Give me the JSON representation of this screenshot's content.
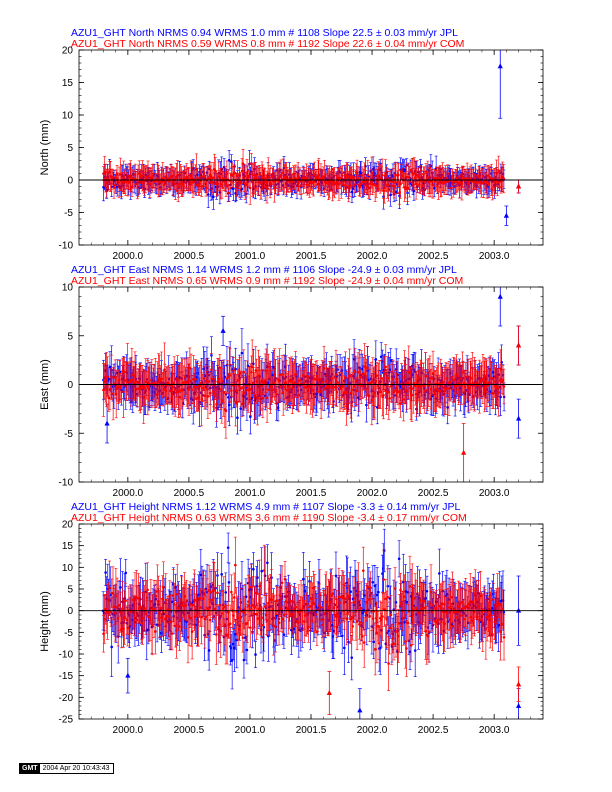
{
  "colors": {
    "jpl": "#0000ff",
    "com": "#ff0000",
    "axis": "#000000"
  },
  "chart_data": [
    {
      "type": "scatter",
      "ylabel": "North (mm)",
      "ylim": [
        -10,
        20
      ],
      "yticks": [
        -10,
        -5,
        0,
        5,
        10,
        15,
        20
      ],
      "xlim": [
        1999.6,
        2003.4
      ],
      "xticks": [
        2000.0,
        2000.5,
        2001.0,
        2001.5,
        2002.0,
        2002.5,
        2003.0
      ],
      "xtick_labels": [
        "2000.0",
        "2000.5",
        "2001.0",
        "2001.5",
        "2002.0",
        "2002.5",
        "2003.0"
      ],
      "header_lines": [
        {
          "text": "AZU1_GHT North NRMS 0.94 WRMS  1.0 mm # 1108 Slope   22.5 ±  0.03 mm/yr JPL",
          "color": "#0000ff"
        },
        {
          "text": "AZU1_GHT North NRMS 0.59 WRMS  0.8 mm # 1192 Slope   22.6 ±  0.04 mm/yr COM",
          "color": "#ff0000"
        }
      ],
      "series": [
        {
          "name": "JPL",
          "color": "#0000ff",
          "t_start": 1999.8,
          "t_end": 2003.08,
          "sigma": 1.0,
          "errbar": 1.5,
          "outliers": [
            {
              "x": 2003.05,
              "y": 17.5,
              "err": 8
            },
            {
              "x": 2003.2,
              "y": -1,
              "err": 1
            },
            {
              "x": 2003.1,
              "y": -5.5,
              "err": 1.5
            }
          ]
        },
        {
          "name": "COM",
          "color": "#ff0000",
          "t_start": 1999.8,
          "t_end": 2003.08,
          "sigma": 0.8,
          "errbar": 1.8,
          "outliers": [
            {
              "x": 2003.2,
              "y": -1,
              "err": 1
            }
          ]
        }
      ]
    },
    {
      "type": "scatter",
      "ylabel": "East (mm)",
      "ylim": [
        -10,
        10
      ],
      "yticks": [
        -10,
        -5,
        0,
        5,
        10
      ],
      "xlim": [
        1999.6,
        2003.4
      ],
      "xticks": [
        2000.0,
        2000.5,
        2001.0,
        2001.5,
        2002.0,
        2002.5,
        2003.0
      ],
      "xtick_labels": [
        "2000.0",
        "2000.5",
        "2001.0",
        "2001.5",
        "2002.0",
        "2002.5",
        "2003.0"
      ],
      "header_lines": [
        {
          "text": "AZU1_GHT East NRMS 1.14 WRMS  1.2 mm # 1106 Slope  -24.9 ±  0.03 mm/yr JPL",
          "color": "#0000ff"
        },
        {
          "text": "AZU1_GHT East NRMS 0.65 WRMS  0.9 mm # 1192 Slope  -24.9 ±  0.04 mm/yr COM",
          "color": "#ff0000"
        }
      ],
      "series": [
        {
          "name": "JPL",
          "color": "#0000ff",
          "t_start": 1999.8,
          "t_end": 2003.08,
          "sigma": 1.2,
          "errbar": 1.8,
          "outliers": [
            {
              "x": 2003.05,
              "y": 9,
              "err": 3
            },
            {
              "x": 2003.2,
              "y": 4,
              "err": 2
            },
            {
              "x": 2003.2,
              "y": -3.5,
              "err": 2
            },
            {
              "x": 1999.83,
              "y": -4,
              "err": 2
            },
            {
              "x": 2000.78,
              "y": 5.5,
              "err": 1.5
            }
          ]
        },
        {
          "name": "COM",
          "color": "#ff0000",
          "t_start": 1999.8,
          "t_end": 2003.08,
          "sigma": 0.9,
          "errbar": 2.0,
          "outliers": [
            {
              "x": 2002.75,
              "y": -7,
              "err": 3
            },
            {
              "x": 2003.2,
              "y": 4,
              "err": 2
            }
          ]
        }
      ]
    },
    {
      "type": "scatter",
      "ylabel": "Height (mm)",
      "ylim": [
        -25,
        20
      ],
      "yticks": [
        -25,
        -20,
        -15,
        -10,
        -5,
        0,
        5,
        10,
        15,
        20
      ],
      "xlim": [
        1999.6,
        2003.4
      ],
      "xticks": [
        2000.0,
        2000.5,
        2001.0,
        2001.5,
        2002.0,
        2002.5,
        2003.0
      ],
      "xtick_labels": [
        "2000.0",
        "2000.5",
        "2001.0",
        "2001.5",
        "2002.0",
        "2002.5",
        "2003.0"
      ],
      "header_lines": [
        {
          "text": "AZU1_GHT Height NRMS 1.12 WRMS  4.9 mm # 1107 Slope   -3.3 ±  0.14 mm/yr JPL",
          "color": "#0000ff"
        },
        {
          "text": "AZU1_GHT Height NRMS 0.63 WRMS  3.6 mm # 1190 Slope   -3.4 ±  0.17 mm/yr COM",
          "color": "#ff0000"
        }
      ],
      "series": [
        {
          "name": "JPL",
          "color": "#0000ff",
          "t_start": 1999.8,
          "t_end": 2003.08,
          "sigma": 4.9,
          "errbar": 5,
          "outliers": [
            {
              "x": 2001.9,
              "y": -23,
              "err": 5
            },
            {
              "x": 2003.2,
              "y": 0,
              "err": 8
            },
            {
              "x": 2003.2,
              "y": -22,
              "err": 4
            },
            {
              "x": 2000.0,
              "y": -15,
              "err": 4
            }
          ]
        },
        {
          "name": "COM",
          "color": "#ff0000",
          "t_start": 1999.8,
          "t_end": 2003.08,
          "sigma": 3.6,
          "errbar": 5,
          "outliers": [
            {
              "x": 2003.2,
              "y": -17,
              "err": 4
            },
            {
              "x": 2001.65,
              "y": -19,
              "err": 5
            }
          ]
        }
      ]
    }
  ],
  "stamp": {
    "logo": "GMT",
    "timestamp": "2004 Apr 20 10:43:43"
  }
}
